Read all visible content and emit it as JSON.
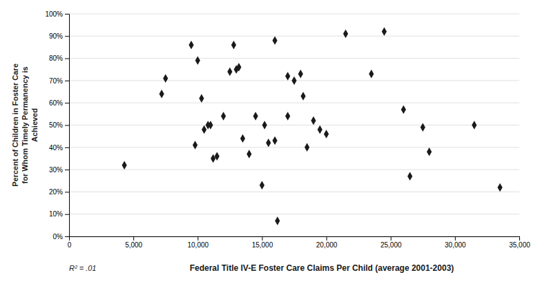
{
  "chart_data": {
    "type": "scatter",
    "xlabel": "Federal Title IV-E Foster Care Claims Per Child (average 2001-2003)",
    "ylabel": "Percent of Children in Foster Care\nfor Whom Timely Permanency is\nAchieved",
    "annotations": [
      "R² = .01"
    ],
    "x": [
      4300,
      7200,
      7500,
      9500,
      9800,
      10000,
      10300,
      10500,
      10800,
      11000,
      11200,
      11500,
      12000,
      12500,
      12800,
      13000,
      13200,
      13500,
      14000,
      14500,
      15000,
      15200,
      15500,
      16000,
      16000,
      16200,
      17000,
      17000,
      17500,
      18000,
      18200,
      18500,
      19000,
      19500,
      20000,
      21500,
      23500,
      24500,
      26000,
      26500,
      27500,
      28000,
      31500,
      33500
    ],
    "values": [
      0.32,
      0.64,
      0.71,
      0.86,
      0.41,
      0.79,
      0.62,
      0.48,
      0.5,
      0.5,
      0.35,
      0.36,
      0.54,
      0.74,
      0.86,
      0.75,
      0.76,
      0.44,
      0.37,
      0.54,
      0.23,
      0.5,
      0.42,
      0.43,
      0.88,
      0.07,
      0.72,
      0.54,
      0.7,
      0.73,
      0.63,
      0.4,
      0.52,
      0.48,
      0.46,
      0.91,
      0.73,
      0.92,
      0.57,
      0.27,
      0.49,
      0.38,
      0.5,
      0.22
    ],
    "color": "#1a1a1a",
    "marker": "diamond",
    "xlim": [
      0,
      35000
    ],
    "ylim": [
      0,
      1.0
    ],
    "xticks": [
      0,
      {
        "value": 5000,
        "label": "5,000"
      },
      {
        "value": 10000,
        "label": "10,000"
      },
      {
        "value": 15000,
        "label": "15,000"
      },
      {
        "value": 20000,
        "label": "20,000"
      },
      {
        "value": 25000,
        "label": "25,000"
      },
      {
        "value": 30000,
        "label": "30,000"
      },
      {
        "value": 35000,
        "label": "35,000"
      }
    ],
    "yticks": [
      {
        "value": 0.0,
        "label": "0%"
      },
      {
        "value": 0.1,
        "label": "10%"
      },
      {
        "value": 0.2,
        "label": "20%"
      },
      {
        "value": 0.3,
        "label": "30%"
      },
      {
        "value": 0.4,
        "label": "40%"
      },
      {
        "value": 0.5,
        "label": "50%"
      },
      {
        "value": 0.6,
        "label": "60%"
      },
      {
        "value": 0.7,
        "label": "70%"
      },
      {
        "value": 0.8,
        "label": "80%"
      },
      {
        "value": 0.9,
        "label": "90%"
      },
      {
        "value": 1.0,
        "label": "100%"
      }
    ],
    "grid": true
  }
}
